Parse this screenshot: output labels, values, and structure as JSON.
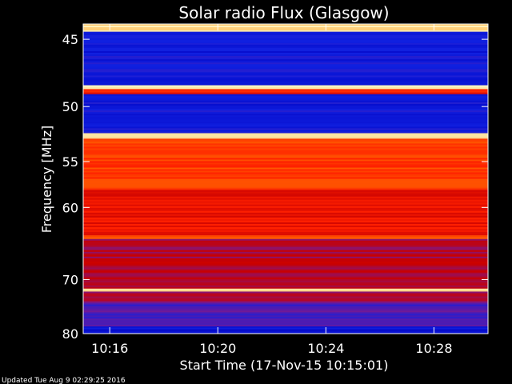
{
  "chart_data": {
    "type": "heatmap",
    "title": "Solar radio Flux (Glasgow)",
    "ylabel": "Frequency [MHz]",
    "xlabel": "Start Time (17-Nov-15 10:15:01)",
    "footer": "Updated Tue Aug  9 02:29:25 2016",
    "y_axis": {
      "range": [
        44,
        80
      ],
      "scale": "reciprocal",
      "ticks": [
        {
          "value": 45,
          "label": "45"
        },
        {
          "value": 50,
          "label": "50"
        },
        {
          "value": 55,
          "label": "55"
        },
        {
          "value": 60,
          "label": "60"
        },
        {
          "value": 70,
          "label": "70"
        },
        {
          "value": 80,
          "label": "80"
        }
      ]
    },
    "x_axis": {
      "range": [
        "10:15:01",
        "10:30:00"
      ],
      "ticks": [
        {
          "value": "10:16",
          "label": "10:16"
        },
        {
          "value": "10:20",
          "label": "10:20"
        },
        {
          "value": "10:24",
          "label": "10:24"
        },
        {
          "value": "10:28",
          "label": "10:28"
        }
      ]
    },
    "colormap": [
      "#0000c0",
      "#1020e0",
      "#7a1890",
      "#c80000",
      "#ff2000",
      "#ff6a00",
      "#ffb040",
      "#fff4c0"
    ],
    "bands": [
      {
        "from_mhz": 44.0,
        "to_mhz": 44.5,
        "level": 0.95
      },
      {
        "from_mhz": 44.5,
        "to_mhz": 48.3,
        "level": 0.12
      },
      {
        "from_mhz": 48.3,
        "to_mhz": 48.6,
        "level": 0.97
      },
      {
        "from_mhz": 48.6,
        "to_mhz": 49.0,
        "level": 0.55
      },
      {
        "from_mhz": 49.0,
        "to_mhz": 52.3,
        "level": 0.12
      },
      {
        "from_mhz": 52.3,
        "to_mhz": 52.8,
        "level": 0.95
      },
      {
        "from_mhz": 52.8,
        "to_mhz": 58.0,
        "level": 0.62
      },
      {
        "from_mhz": 58.0,
        "to_mhz": 63.5,
        "level": 0.52
      },
      {
        "from_mhz": 63.5,
        "to_mhz": 64.0,
        "level": 0.68
      },
      {
        "from_mhz": 64.0,
        "to_mhz": 71.5,
        "level": 0.38
      },
      {
        "from_mhz": 71.5,
        "to_mhz": 72.0,
        "level": 0.97
      },
      {
        "from_mhz": 72.0,
        "to_mhz": 74.0,
        "level": 0.34
      },
      {
        "from_mhz": 74.0,
        "to_mhz": 78.5,
        "level": 0.22
      },
      {
        "from_mhz": 78.5,
        "to_mhz": 80.0,
        "level": 0.1
      }
    ]
  }
}
